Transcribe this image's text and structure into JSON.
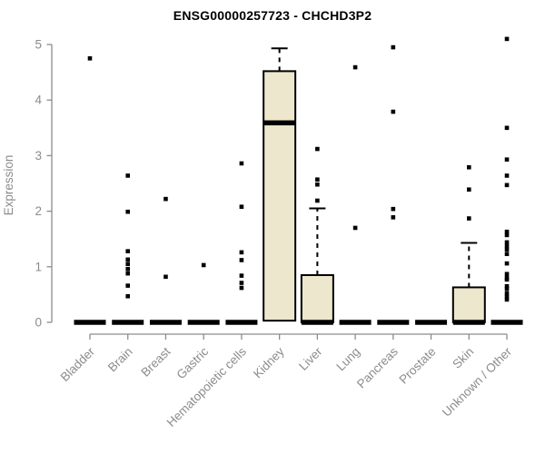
{
  "chart_data": {
    "type": "boxplot",
    "title": "ENSG00000257723 - CHCHD3P2",
    "xlabel": "",
    "ylabel": "Expression",
    "ylim": [
      0,
      5
    ],
    "yticks": [
      0,
      1,
      2,
      3,
      4,
      5
    ],
    "grid": false,
    "legend": "none",
    "categories": [
      "Bladder",
      "Brain",
      "Breast",
      "Gastric",
      "Hematopoietic cells",
      "Kidney",
      "Liver",
      "Lung",
      "Pancreas",
      "Prostate",
      "Skin",
      "Unknown / Other"
    ],
    "series": [
      {
        "name": "Bladder",
        "q1": 0,
        "median": 0,
        "q3": 0,
        "whisker_low": 0,
        "whisker_high": 0,
        "outliers": [
          4.75
        ]
      },
      {
        "name": "Brain",
        "q1": 0,
        "median": 0,
        "q3": 0,
        "whisker_low": 0,
        "whisker_high": 0,
        "outliers": [
          2.64,
          1.99,
          1.28,
          1.13,
          1.05,
          0.96,
          0.88,
          0.66,
          0.47
        ]
      },
      {
        "name": "Breast",
        "q1": 0,
        "median": 0,
        "q3": 0,
        "whisker_low": 0,
        "whisker_high": 0,
        "outliers": [
          2.22,
          0.82
        ]
      },
      {
        "name": "Gastric",
        "q1": 0,
        "median": 0,
        "q3": 0,
        "whisker_low": 0,
        "whisker_high": 0,
        "outliers": [
          1.03
        ]
      },
      {
        "name": "Hematopoietic cells",
        "q1": 0,
        "median": 0,
        "q3": 0,
        "whisker_low": 0,
        "whisker_high": 0,
        "outliers": [
          2.86,
          2.08,
          1.26,
          1.12,
          0.84,
          0.71,
          0.62
        ]
      },
      {
        "name": "Kidney",
        "q1": 0.03,
        "median": 3.59,
        "q3": 4.52,
        "whisker_low": 0,
        "whisker_high": 4.93,
        "outliers": []
      },
      {
        "name": "Liver",
        "q1": 0,
        "median": 0,
        "q3": 0.85,
        "whisker_low": 0,
        "whisker_high": 2.05,
        "outliers": [
          3.12,
          2.57,
          2.48,
          2.19
        ]
      },
      {
        "name": "Lung",
        "q1": 0,
        "median": 0,
        "q3": 0,
        "whisker_low": 0,
        "whisker_high": 0,
        "outliers": [
          4.59,
          1.7
        ]
      },
      {
        "name": "Pancreas",
        "q1": 0,
        "median": 0,
        "q3": 0,
        "whisker_low": 0,
        "whisker_high": 0,
        "outliers": [
          4.95,
          3.79,
          2.04,
          1.89
        ]
      },
      {
        "name": "Prostate",
        "q1": 0,
        "median": 0,
        "q3": 0,
        "whisker_low": 0,
        "whisker_high": 0,
        "outliers": []
      },
      {
        "name": "Skin",
        "q1": 0,
        "median": 0,
        "q3": 0.63,
        "whisker_low": 0,
        "whisker_high": 1.43,
        "outliers": [
          2.79,
          2.39,
          1.87
        ]
      },
      {
        "name": "Unknown / Other",
        "q1": 0,
        "median": 0,
        "q3": 0,
        "whisker_low": 0,
        "whisker_high": 0,
        "outliers": [
          5.1,
          3.5,
          2.93,
          2.64,
          2.47,
          1.63,
          1.57,
          1.44,
          1.37,
          1.31,
          1.23,
          1.06,
          0.87,
          0.8,
          0.77,
          0.65,
          0.6,
          0.52,
          0.46,
          0.41
        ]
      }
    ],
    "colors": {
      "box_fill": "#ece7cd",
      "box_border": "#000000",
      "median": "#000000",
      "outlier": "#000000",
      "axis": "#8c8c8c",
      "title": "#000000"
    }
  }
}
